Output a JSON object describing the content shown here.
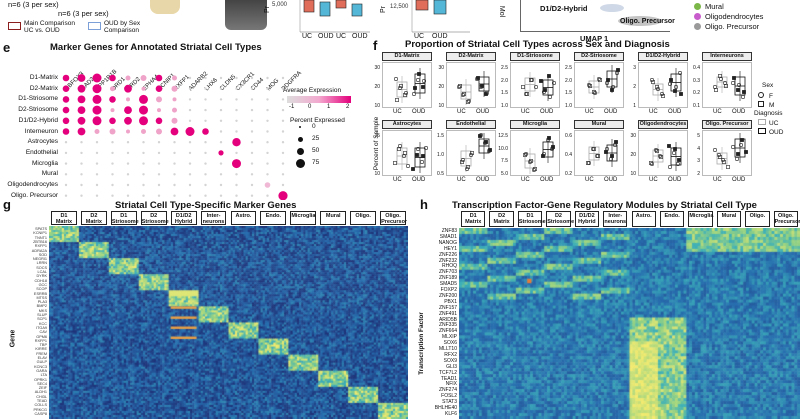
{
  "top": {
    "n_uc": "n=6 (3 per sex)",
    "n_oud": "n=6 (3 per sex)",
    "legend_main": "Main Comparison UC vs. OUD",
    "legend_sex": "OUD by Sex Comparison",
    "box_xlabels": [
      "UC",
      "OUD",
      "UC",
      "OUD",
      "UC",
      "OUD"
    ],
    "box_ylabel_a": "Pr",
    "box_ylabel_b": "Pr",
    "y_tick_a": "5,000",
    "y_tick_b": "12,500",
    "side_label": "Mol",
    "umap_axis": "UMAP 1",
    "umap_cluster": "D1/D2-Hybrid",
    "umap_cluster2": "Oligo. Precursor",
    "umap_legend": [
      {
        "label": "Mural",
        "color": "#7ab648"
      },
      {
        "label": "Oligodendrocytes",
        "color": "#c95ccc"
      },
      {
        "label": "Oligo. Precursor",
        "color": "#9a9a9a"
      }
    ]
  },
  "panel_e": {
    "letter": "e",
    "title": "Marker Genes for Annotated Striatal Cell Types",
    "genes": [
      "RBFOX3",
      "GAD2",
      "PPP1R1B",
      "DRD1",
      "DRD2",
      "EPHA4",
      "KCNIP1",
      "RXFP1",
      "ADARB2",
      "LHX6",
      "CLDN5",
      "CX3CR1",
      "CD44",
      "MOG",
      "PDGFRA"
    ],
    "cell_types": [
      "D1-Matrix",
      "D2-Matrix",
      "D1-Striosome",
      "D2-Striosome",
      "D1/D2-Hybrid",
      "Interneuron",
      "Astrocytes",
      "Endothelial",
      "Microglia",
      "Mural",
      "Oligodendrocytes",
      "Oligo. Precursor"
    ],
    "legend_expr_title": "Average Expression",
    "legend_expr_ticks": [
      "-1",
      "0",
      "1",
      "2"
    ],
    "legend_pct_title": "Percent Expressed",
    "legend_pct_values": [
      "0",
      "25",
      "50",
      "75"
    ],
    "low_color": "#dddddd",
    "high_color": "#e4007c"
  },
  "panel_f": {
    "letter": "f",
    "title": "Proportion of Striatal Cell Types across Sex and Diagnosis",
    "ylabel": "Percent of Sample",
    "xlabels": [
      "UC",
      "OUD"
    ],
    "facets": [
      {
        "name": "D1-Matrix",
        "ticks": [
          "30",
          "20",
          "10"
        ]
      },
      {
        "name": "D2-Matrix",
        "ticks": [
          "30",
          "20",
          "10"
        ]
      },
      {
        "name": "D1-Striosome",
        "ticks": [
          "2.5",
          "2.0",
          "1.5",
          "1.0"
        ]
      },
      {
        "name": "D2-Striosome",
        "ticks": [
          "2.5",
          "2.0",
          "1.5",
          "1.0"
        ]
      },
      {
        "name": "D1/D2-Hybrid",
        "ticks": [
          "3",
          "2",
          "1"
        ]
      },
      {
        "name": "Interneurons",
        "ticks": [
          "0.4",
          "0.3",
          "0.2",
          "0.1"
        ]
      },
      {
        "name": "Astrocytes",
        "ticks": [
          "15",
          "10"
        ]
      },
      {
        "name": "Endothelial",
        "ticks": [
          "1.5",
          "1.0",
          "0.5"
        ]
      },
      {
        "name": "Microglia",
        "ticks": [
          "12.5",
          "10.0",
          "7.5",
          "5.0"
        ]
      },
      {
        "name": "Mural",
        "ticks": [
          "0.6",
          "0.4",
          "0.2"
        ]
      },
      {
        "name": "Oligodendrocytes",
        "ticks": [
          "30",
          "20",
          "10"
        ]
      },
      {
        "name": "Oligo. Precursor",
        "ticks": [
          "5",
          "4",
          "3",
          "2"
        ]
      }
    ],
    "legend_sex_title": "Sex",
    "legend_sex": [
      "F",
      "M"
    ],
    "legend_dx_title": "Diagnosis",
    "legend_dx": [
      "UC",
      "OUD"
    ]
  },
  "panel_g": {
    "letter": "g",
    "title": "Striatal Cell Type-Specific Marker Genes",
    "ylabel": "Gene",
    "columns": [
      "D1 Matrix",
      "D2 Matrix",
      "D1 Striosome",
      "D2 Striosome",
      "D1/D2 Hybrid",
      "Inter-neurons",
      "Astro.",
      "Endo.",
      "Microglia",
      "Mural",
      "Oligo.",
      "Oligo. Precursor"
    ],
    "genes": [
      "SPATS",
      "KCNIP1",
      "TNNT1",
      "ZBTB16",
      "RXFP1",
      "ADRA2A",
      "SOD",
      "NEGRI1",
      "LRRN",
      "SOCS",
      "LCAL",
      "DYRK",
      "CDH18",
      "GCC",
      "SCOP",
      "ESRRB",
      "MTSS",
      "PLA3",
      "BMP2",
      "MKS",
      "SLUP",
      "SCP1",
      "KCC",
      "ITGA9",
      "CAV",
      "GPM6",
      "RXFP1",
      "TBP",
      "KIRRE",
      "FREM",
      "ELAV",
      "GULP",
      "KCNC3",
      "GARA",
      "LTA",
      "OPRK1",
      "SEC4",
      "ZEIF",
      "ALDH1",
      "CHI3L",
      "TEAD",
      "COLLS",
      "PRKCG",
      "CASP8"
    ]
  },
  "panel_h": {
    "letter": "h",
    "title": "Transcription Factor-Gene Regulatory Modules by Striatal Cell Type",
    "ylabel": "Transcription Factor",
    "columns": [
      "D1 Matrix",
      "D2 Matrix",
      "D1 Striosome",
      "D2 Striosome",
      "D1/D2 Hybrid",
      "Inter-neurons",
      "Astro.",
      "Endo.",
      "Microglia",
      "Mural",
      "Oligo.",
      "Oligo. Precursor"
    ],
    "tfs": [
      "ZNF83",
      "SMAD1",
      "NANOG",
      "HEY1",
      "ZNF226",
      "ZNF232",
      "RHOQ",
      "ZNF703",
      "ZNF189",
      "SMAD5",
      "FOXP2",
      "ZNF200",
      "PBX1",
      "ZNF157",
      "ZNF491",
      "ARID5B",
      "ZNF335",
      "ZNF664",
      "MLXIP",
      "SOX6",
      "MLLT10",
      "RFX2",
      "SOX9",
      "GLI3",
      "TCF7L2",
      "TEAD1",
      "NFIX",
      "ZNF274",
      "FOSL2",
      "STAT3",
      "BHLHE40",
      "KLF6"
    ]
  }
}
